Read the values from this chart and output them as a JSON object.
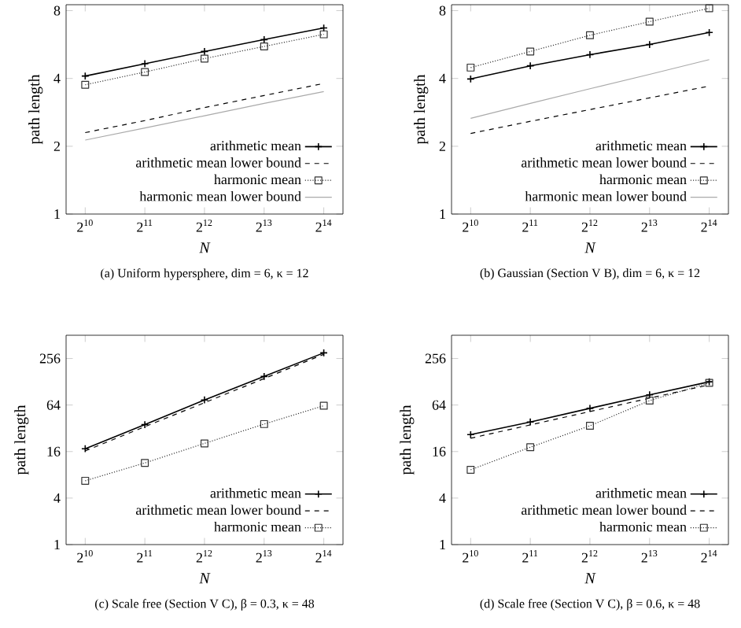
{
  "chart_data": [
    {
      "type": "line",
      "xlabel": "N",
      "ylabel": "path length",
      "annotations": [
        "(a) Uniform hypersphere, dim = 6, κ = 12"
      ],
      "log": "xy",
      "legend": "bottom right",
      "grid": false,
      "x": [
        1024,
        2048,
        4096,
        8192,
        16384
      ],
      "xlim": [
        820,
        20480
      ],
      "xticks": [
        {
          "value": 1024,
          "label": "2$^{10}$"
        },
        {
          "value": 2048,
          "label": "2$^{11}$"
        },
        {
          "value": 4096,
          "label": "2$^{12}$"
        },
        {
          "value": 8192,
          "label": "2$^{13}$"
        },
        {
          "value": 16384,
          "label": "2$^{14}$"
        }
      ],
      "ylim": [
        1,
        8.5
      ],
      "yticks": [
        1,
        2,
        4,
        8
      ],
      "series": [
        {
          "name": "arithmetic mean",
          "color": "#000000",
          "marker": "cross",
          "line_style": "solid",
          "values": [
            4.1,
            4.65,
            5.27,
            5.95,
            6.7
          ]
        },
        {
          "name": "arithmetic mean lower bound",
          "color": "#000000",
          "marker": "none",
          "line_style": "dashed",
          "values": [
            2.3,
            2.6,
            2.97,
            3.36,
            3.8
          ]
        },
        {
          "name": "harmonic mean",
          "color": "#333333",
          "marker": "square",
          "line_style": "dotted",
          "values": [
            3.75,
            4.27,
            4.9,
            5.55,
            6.28
          ]
        },
        {
          "name": "harmonic mean lower bound",
          "color": "#aaaaaa",
          "marker": "none",
          "line_style": "solid",
          "values": [
            2.13,
            2.41,
            2.73,
            3.1,
            3.5
          ]
        }
      ]
    },
    {
      "type": "line",
      "xlabel": "N",
      "ylabel": "path length",
      "annotations": [
        "(b) Gaussian (Section V B), dim = 6, κ = 12"
      ],
      "log": "xy",
      "legend": "bottom right",
      "grid": false,
      "x": [
        1024,
        2048,
        4096,
        8192,
        16384
      ],
      "xlim": [
        820,
        20480
      ],
      "xticks": [
        {
          "value": 1024,
          "label": "2$^{10}$"
        },
        {
          "value": 2048,
          "label": "2$^{11}$"
        },
        {
          "value": 4096,
          "label": "2$^{12}$"
        },
        {
          "value": 8192,
          "label": "2$^{13}$"
        },
        {
          "value": 16384,
          "label": "2$^{14}$"
        }
      ],
      "ylim": [
        1,
        8.5
      ],
      "yticks": [
        1,
        2,
        4,
        8
      ],
      "series": [
        {
          "name": "arithmetic mean",
          "color": "#000000",
          "marker": "cross",
          "line_style": "solid",
          "values": [
            3.98,
            4.55,
            5.1,
            5.66,
            6.4
          ]
        },
        {
          "name": "arithmetic mean lower bound",
          "color": "#000000",
          "marker": "none",
          "line_style": "dashed",
          "values": [
            2.28,
            2.58,
            2.91,
            3.28,
            3.7
          ]
        },
        {
          "name": "harmonic mean",
          "color": "#333333",
          "marker": "square",
          "line_style": "dotted",
          "values": [
            4.47,
            5.27,
            6.22,
            7.15,
            8.2
          ]
        },
        {
          "name": "harmonic mean lower bound",
          "color": "#aaaaaa",
          "marker": "none",
          "line_style": "solid",
          "values": [
            2.66,
            3.1,
            3.6,
            4.17,
            4.85
          ]
        }
      ]
    },
    {
      "type": "line",
      "xlabel": "N",
      "ylabel": "path length",
      "annotations": [
        "(c) Scale free (Section V C), β = 0.3, κ = 48"
      ],
      "log": "xy",
      "legend": "bottom right",
      "grid": false,
      "x": [
        1024,
        2048,
        4096,
        8192,
        16384
      ],
      "xlim": [
        820,
        20480
      ],
      "xticks": [
        {
          "value": 1024,
          "label": "2$^{10}$"
        },
        {
          "value": 2048,
          "label": "2$^{11}$"
        },
        {
          "value": 4096,
          "label": "2$^{12}$"
        },
        {
          "value": 8192,
          "label": "2$^{13}$"
        },
        {
          "value": 16384,
          "label": "2$^{14}$"
        }
      ],
      "ylim": [
        1,
        512
      ],
      "yticks": [
        1,
        4,
        16,
        64,
        256
      ],
      "series": [
        {
          "name": "arithmetic mean",
          "color": "#000000",
          "marker": "cross",
          "line_style": "solid",
          "values": [
            17.4,
            35.7,
            74.5,
            150,
            303
          ]
        },
        {
          "name": "arithmetic mean lower bound",
          "color": "#000000",
          "marker": "none",
          "line_style": "dashed",
          "values": [
            16.3,
            33.6,
            68.6,
            141,
            290
          ]
        },
        {
          "name": "harmonic mean",
          "color": "#333333",
          "marker": "square",
          "line_style": "dotted",
          "values": [
            6.7,
            11.4,
            20.4,
            36.3,
            62.7
          ]
        }
      ]
    },
    {
      "type": "line",
      "xlabel": "N",
      "ylabel": "path length",
      "annotations": [
        "(d) Scale free (Section V C), β = 0.6, κ = 48"
      ],
      "log": "xy",
      "legend": "bottom right",
      "grid": false,
      "x": [
        1024,
        2048,
        4096,
        8192,
        16384
      ],
      "xlim": [
        820,
        20480
      ],
      "xticks": [
        {
          "value": 1024,
          "label": "2$^{10}$"
        },
        {
          "value": 2048,
          "label": "2$^{11}$"
        },
        {
          "value": 4096,
          "label": "2$^{12}$"
        },
        {
          "value": 8192,
          "label": "2$^{13}$"
        },
        {
          "value": 16384,
          "label": "2$^{14}$"
        }
      ],
      "ylim": [
        1,
        512
      ],
      "yticks": [
        1,
        4,
        16,
        64,
        256
      ],
      "series": [
        {
          "name": "arithmetic mean",
          "color": "#000000",
          "marker": "cross",
          "line_style": "solid",
          "values": [
            26.5,
            38.6,
            58,
            86.8,
            128
          ]
        },
        {
          "name": "arithmetic mean lower bound",
          "color": "#000000",
          "marker": "none",
          "line_style": "dashed",
          "values": [
            23.8,
            35.4,
            52.7,
            78.5,
            117
          ]
        },
        {
          "name": "harmonic mean",
          "color": "#333333",
          "marker": "square",
          "line_style": "dotted",
          "values": [
            9.3,
            18.2,
            34.5,
            73,
            124
          ]
        }
      ]
    }
  ]
}
